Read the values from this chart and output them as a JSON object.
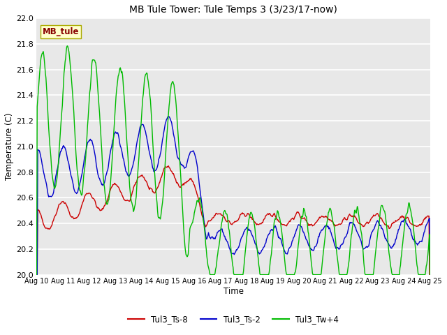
{
  "title": "MB Tule Tower: Tule Temps 3 (3/23/17-now)",
  "xlabel": "Time",
  "ylabel": "Temperature (C)",
  "ylim": [
    20.0,
    22.0
  ],
  "yticks": [
    20.0,
    20.2,
    20.4,
    20.6,
    20.8,
    21.0,
    21.2,
    21.4,
    21.6,
    21.8,
    22.0
  ],
  "xtick_labels": [
    "Aug 10",
    "Aug 11",
    "Aug 12",
    "Aug 13",
    "Aug 14",
    "Aug 15",
    "Aug 16",
    "Aug 17",
    "Aug 18",
    "Aug 19",
    "Aug 20",
    "Aug 21",
    "Aug 22",
    "Aug 23",
    "Aug 24",
    "Aug 25"
  ],
  "color_red": "#cc0000",
  "color_blue": "#0000cc",
  "color_green": "#00bb00",
  "legend_labels": [
    "Tul3_Ts-8",
    "Tul3_Ts-2",
    "Tul3_Tw+4"
  ],
  "watermark_text": "MB_tule",
  "watermark_bg": "#ffffcc",
  "watermark_fg": "#880000",
  "watermark_edge": "#aaaa00",
  "background_color": "#e8e8e8",
  "plot_bg": "#e8e8e8",
  "linewidth": 1.0,
  "figwidth": 6.4,
  "figheight": 4.8,
  "dpi": 100
}
